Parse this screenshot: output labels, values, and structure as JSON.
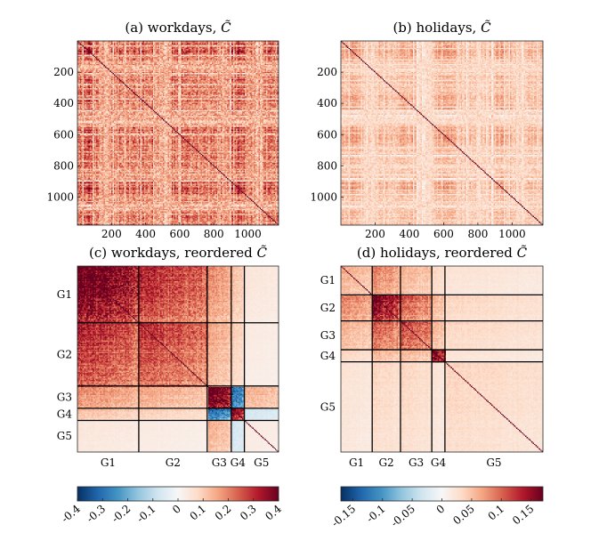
{
  "chart_data": [
    {
      "type": "heatmap",
      "title_prefix": "(a) workdays, ",
      "title_symbol": "C̃",
      "matrix_size": 1180,
      "ordering": "original",
      "xticks": [
        200,
        400,
        600,
        800,
        1000
      ],
      "yticks": [
        200,
        400,
        600,
        800,
        1000
      ],
      "colorbar": "left",
      "pattern": "banded",
      "intensity": 0.3
    },
    {
      "type": "heatmap",
      "title_prefix": "(b) holidays, ",
      "title_symbol": "C̃",
      "matrix_size": 1180,
      "ordering": "original",
      "xticks": [
        200,
        400,
        600,
        800,
        1000
      ],
      "yticks": [
        200,
        400,
        600,
        800,
        1000
      ],
      "colorbar": "right",
      "pattern": "banded",
      "intensity": 0.07
    },
    {
      "type": "heatmap",
      "title_prefix": "(c) workdays, reordered ",
      "title_symbol": "C̃",
      "ordering": "reordered",
      "colorbar": "left",
      "groups": [
        "G1",
        "G2",
        "G3",
        "G4",
        "G5"
      ],
      "group_sizes": [
        0.305,
        0.34,
        0.12,
        0.065,
        0.17
      ],
      "block_values": [
        [
          0.36,
          0.26,
          0.16,
          0.1,
          0.04
        ],
        [
          0.26,
          0.24,
          0.13,
          0.08,
          0.03
        ],
        [
          0.16,
          0.13,
          0.38,
          -0.26,
          0.12
        ],
        [
          0.1,
          0.08,
          -0.26,
          0.32,
          -0.06
        ],
        [
          0.04,
          0.03,
          0.12,
          -0.06,
          0.03
        ]
      ]
    },
    {
      "type": "heatmap",
      "title_prefix": "(d) holidays, reordered ",
      "title_symbol": "C̃",
      "ordering": "reordered",
      "colorbar": "right",
      "groups": [
        "G1",
        "G2",
        "G3",
        "G4",
        "G5"
      ],
      "group_sizes": [
        0.155,
        0.14,
        0.155,
        0.065,
        0.485
      ],
      "block_values": [
        [
          0.05,
          0.07,
          0.05,
          0.03,
          0.02
        ],
        [
          0.07,
          0.14,
          0.09,
          0.05,
          0.03
        ],
        [
          0.05,
          0.09,
          0.1,
          0.05,
          0.03
        ],
        [
          0.03,
          0.05,
          0.05,
          0.14,
          0.02
        ],
        [
          0.02,
          0.03,
          0.03,
          0.02,
          0.03
        ]
      ]
    }
  ],
  "colorbars": [
    {
      "name": "left",
      "min": -0.4,
      "max": 0.4,
      "ticks": [
        -0.4,
        -0.3,
        -0.2,
        -0.1,
        0,
        0.1,
        0.2,
        0.3,
        0.4
      ],
      "tick_labels": [
        "-0.4",
        "-0.3",
        "-0.2",
        "-0.1",
        "0",
        "0.1",
        "0.2",
        "0.3",
        "0.4"
      ]
    },
    {
      "name": "right",
      "min": -0.17,
      "max": 0.17,
      "ticks": [
        -0.15,
        -0.1,
        -0.05,
        0,
        0.05,
        0.1,
        0.15
      ],
      "tick_labels": [
        "-0.15",
        "-0.1",
        "-0.05",
        "0",
        "0.05",
        "0.1",
        "0.15"
      ]
    }
  ],
  "colors": {
    "negative_dark": "#053061",
    "negative_mid": "#4393c3",
    "neutral": "#f7f7f7",
    "positive_mid": "#f4a582",
    "positive_dark": "#67001f",
    "diagonal": "#67001f",
    "group_lines": "#000000"
  }
}
